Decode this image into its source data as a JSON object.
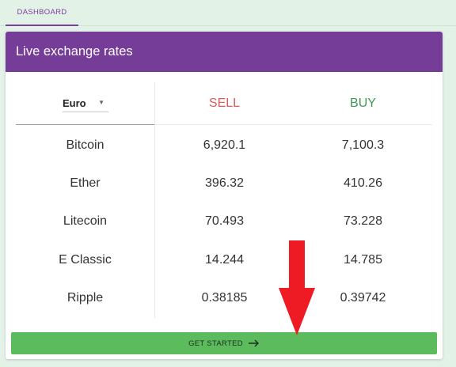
{
  "nav": {
    "tab_dashboard": "DASHBOARD"
  },
  "card": {
    "title": "Live exchange rates",
    "currency_selected": "Euro",
    "columns": {
      "sell": "SELL",
      "buy": "BUY"
    },
    "rows": [
      {
        "name": "Bitcoin",
        "sell": "6,920.1",
        "buy": "7,100.3"
      },
      {
        "name": "Ether",
        "sell": "396.32",
        "buy": "410.26"
      },
      {
        "name": "Litecoin",
        "sell": "70.493",
        "buy": "73.228"
      },
      {
        "name": "E Classic",
        "sell": "14.244",
        "buy": "14.785"
      },
      {
        "name": "Ripple",
        "sell": "0.38185",
        "buy": "0.39742"
      }
    ],
    "button": {
      "label": "GET STARTED",
      "icon": "arrow-right-icon"
    }
  },
  "annotation": {
    "icon": "red-down-arrow-icon",
    "color": "#ee1b24"
  },
  "colors": {
    "brand_purple": "#753c98",
    "sell_red": "#e05858",
    "buy_green": "#3a9a50",
    "button_green": "#5bbb5d",
    "page_bg": "#e3f2e7"
  }
}
